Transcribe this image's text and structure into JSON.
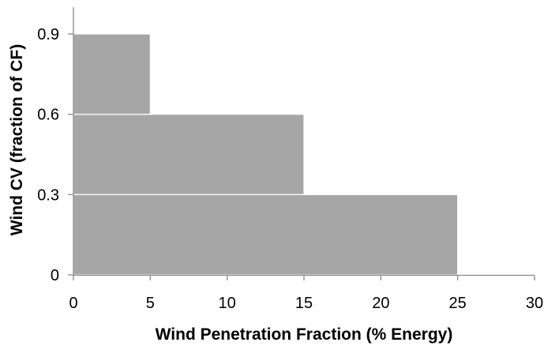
{
  "chart_data": {
    "type": "bar",
    "title": "",
    "xlabel": "Wind Penetration Fraction (% Energy)",
    "ylabel": "Wind CV (fraction of CF)",
    "xlim": [
      0,
      30
    ],
    "ylim": [
      0,
      1.0
    ],
    "xticks": [
      0,
      5,
      10,
      15,
      20,
      25,
      30
    ],
    "yticks": [
      0,
      0.3,
      0.6,
      0.9
    ],
    "xtick_labels": [
      "0",
      "5",
      "10",
      "15",
      "20",
      "25",
      "30"
    ],
    "ytick_labels": [
      "0",
      "0.3",
      "0.6",
      "0.9"
    ],
    "bars": [
      {
        "x_start": 0,
        "x_end": 25,
        "y_start": 0,
        "y_end": 0.3
      },
      {
        "x_start": 0,
        "x_end": 15,
        "y_start": 0.3,
        "y_end": 0.6
      },
      {
        "x_start": 0,
        "x_end": 5,
        "y_start": 0.6,
        "y_end": 0.9
      }
    ],
    "grid": false,
    "legend": "none",
    "bar_color": "#a6a6a6",
    "axis_color": "#898989"
  }
}
